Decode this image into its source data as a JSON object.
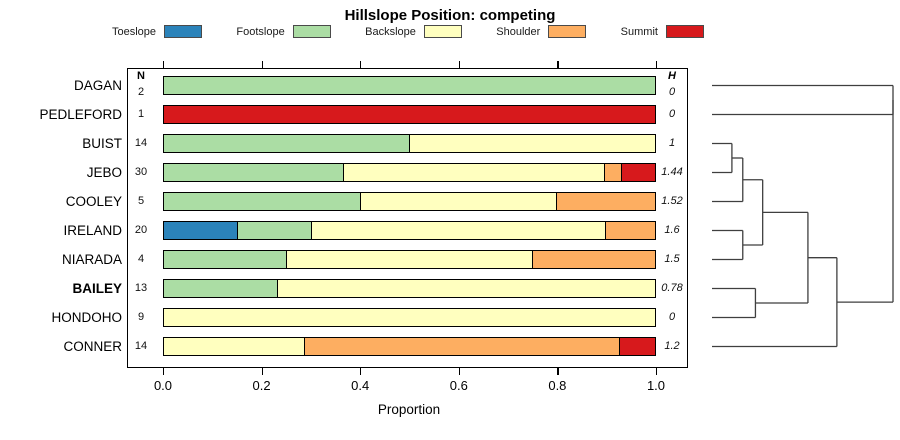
{
  "chart_data": {
    "type": "bar",
    "subtype": "horizontal_stacked_proportion_with_dendrogram",
    "title": "Hillslope Position: competing",
    "xlabel": "Proportion",
    "xlim": [
      0,
      1
    ],
    "x_ticks": [
      0.0,
      0.2,
      0.4,
      0.6,
      0.8,
      1.0
    ],
    "x_tick_labels": [
      "0.0",
      "0.2",
      "0.4",
      "0.6",
      "0.8",
      "1.0"
    ],
    "grid": false,
    "legend_position": "top",
    "n_header": "N",
    "h_header": "H",
    "categories": [
      "Toeslope",
      "Footslope",
      "Backslope",
      "Shoulder",
      "Summit"
    ],
    "colors": {
      "Toeslope": "#2B83BA",
      "Footslope": "#ABDDA4",
      "Backslope": "#FFFFBF",
      "Shoulder": "#FDAE61",
      "Summit": "#D7191C"
    },
    "rows": [
      {
        "label": "DAGAN",
        "n": 2,
        "h": "0",
        "bold": false,
        "segments": [
          {
            "category": "Footslope",
            "proportion": 1.0
          }
        ]
      },
      {
        "label": "PEDLEFORD",
        "n": 1,
        "h": "0",
        "bold": false,
        "segments": [
          {
            "category": "Summit",
            "proportion": 1.0
          }
        ]
      },
      {
        "label": "BUIST",
        "n": 14,
        "h": "1",
        "bold": false,
        "segments": [
          {
            "category": "Footslope",
            "proportion": 0.5
          },
          {
            "category": "Backslope",
            "proportion": 0.5
          }
        ]
      },
      {
        "label": "JEBO",
        "n": 30,
        "h": "1.44",
        "bold": false,
        "segments": [
          {
            "category": "Footslope",
            "proportion": 0.367
          },
          {
            "category": "Backslope",
            "proportion": 0.533
          },
          {
            "category": "Shoulder",
            "proportion": 0.033
          },
          {
            "category": "Summit",
            "proportion": 0.067
          }
        ]
      },
      {
        "label": "COOLEY",
        "n": 5,
        "h": "1.52",
        "bold": false,
        "segments": [
          {
            "category": "Footslope",
            "proportion": 0.4
          },
          {
            "category": "Backslope",
            "proportion": 0.4
          },
          {
            "category": "Shoulder",
            "proportion": 0.2
          }
        ]
      },
      {
        "label": "IRELAND",
        "n": 20,
        "h": "1.6",
        "bold": false,
        "segments": [
          {
            "category": "Toeslope",
            "proportion": 0.15
          },
          {
            "category": "Footslope",
            "proportion": 0.15
          },
          {
            "category": "Backslope",
            "proportion": 0.6
          },
          {
            "category": "Shoulder",
            "proportion": 0.1
          }
        ]
      },
      {
        "label": "NIARADA",
        "n": 4,
        "h": "1.5",
        "bold": false,
        "segments": [
          {
            "category": "Footslope",
            "proportion": 0.25
          },
          {
            "category": "Backslope",
            "proportion": 0.5
          },
          {
            "category": "Shoulder",
            "proportion": 0.25
          }
        ]
      },
      {
        "label": "BAILEY",
        "n": 13,
        "h": "0.78",
        "bold": true,
        "segments": [
          {
            "category": "Footslope",
            "proportion": 0.231
          },
          {
            "category": "Backslope",
            "proportion": 0.769
          }
        ]
      },
      {
        "label": "HONDOHO",
        "n": 9,
        "h": "0",
        "bold": false,
        "segments": [
          {
            "category": "Backslope",
            "proportion": 1.0
          }
        ]
      },
      {
        "label": "CONNER",
        "n": 14,
        "h": "1.2",
        "bold": false,
        "segments": [
          {
            "category": "Backslope",
            "proportion": 0.286
          },
          {
            "category": "Shoulder",
            "proportion": 0.643
          },
          {
            "category": "Summit",
            "proportion": 0.071
          }
        ]
      }
    ],
    "dendrogram": {
      "orientation": "right",
      "height_range": [
        0,
        1
      ],
      "merges": [
        {
          "id": "m_buist_jebo",
          "children": [
            "BUIST",
            "JEBO"
          ],
          "height": 0.11
        },
        {
          "id": "m_cooley",
          "children": [
            "m_buist_jebo",
            "COOLEY"
          ],
          "height": 0.17
        },
        {
          "id": "m_ireland_niarada",
          "children": [
            "IRELAND",
            "NIARADA"
          ],
          "height": 0.17
        },
        {
          "id": "m_bailey_hondoho",
          "children": [
            "BAILEY",
            "HONDOHO"
          ],
          "height": 0.24
        },
        {
          "id": "m_mid",
          "children": [
            "m_cooley",
            "m_ireland_niarada"
          ],
          "height": 0.28
        },
        {
          "id": "m_low",
          "children": [
            "m_mid",
            "m_bailey_hondoho"
          ],
          "height": 0.53
        },
        {
          "id": "m_conner",
          "children": [
            "m_low",
            "CONNER"
          ],
          "height": 0.69
        },
        {
          "id": "m_dagan_pedleford",
          "children": [
            "DAGAN",
            "PEDLEFORD"
          ],
          "height": 1.0
        },
        {
          "id": "root",
          "children": [
            "m_dagan_pedleford",
            "m_conner"
          ],
          "height": 1.0
        }
      ]
    }
  }
}
